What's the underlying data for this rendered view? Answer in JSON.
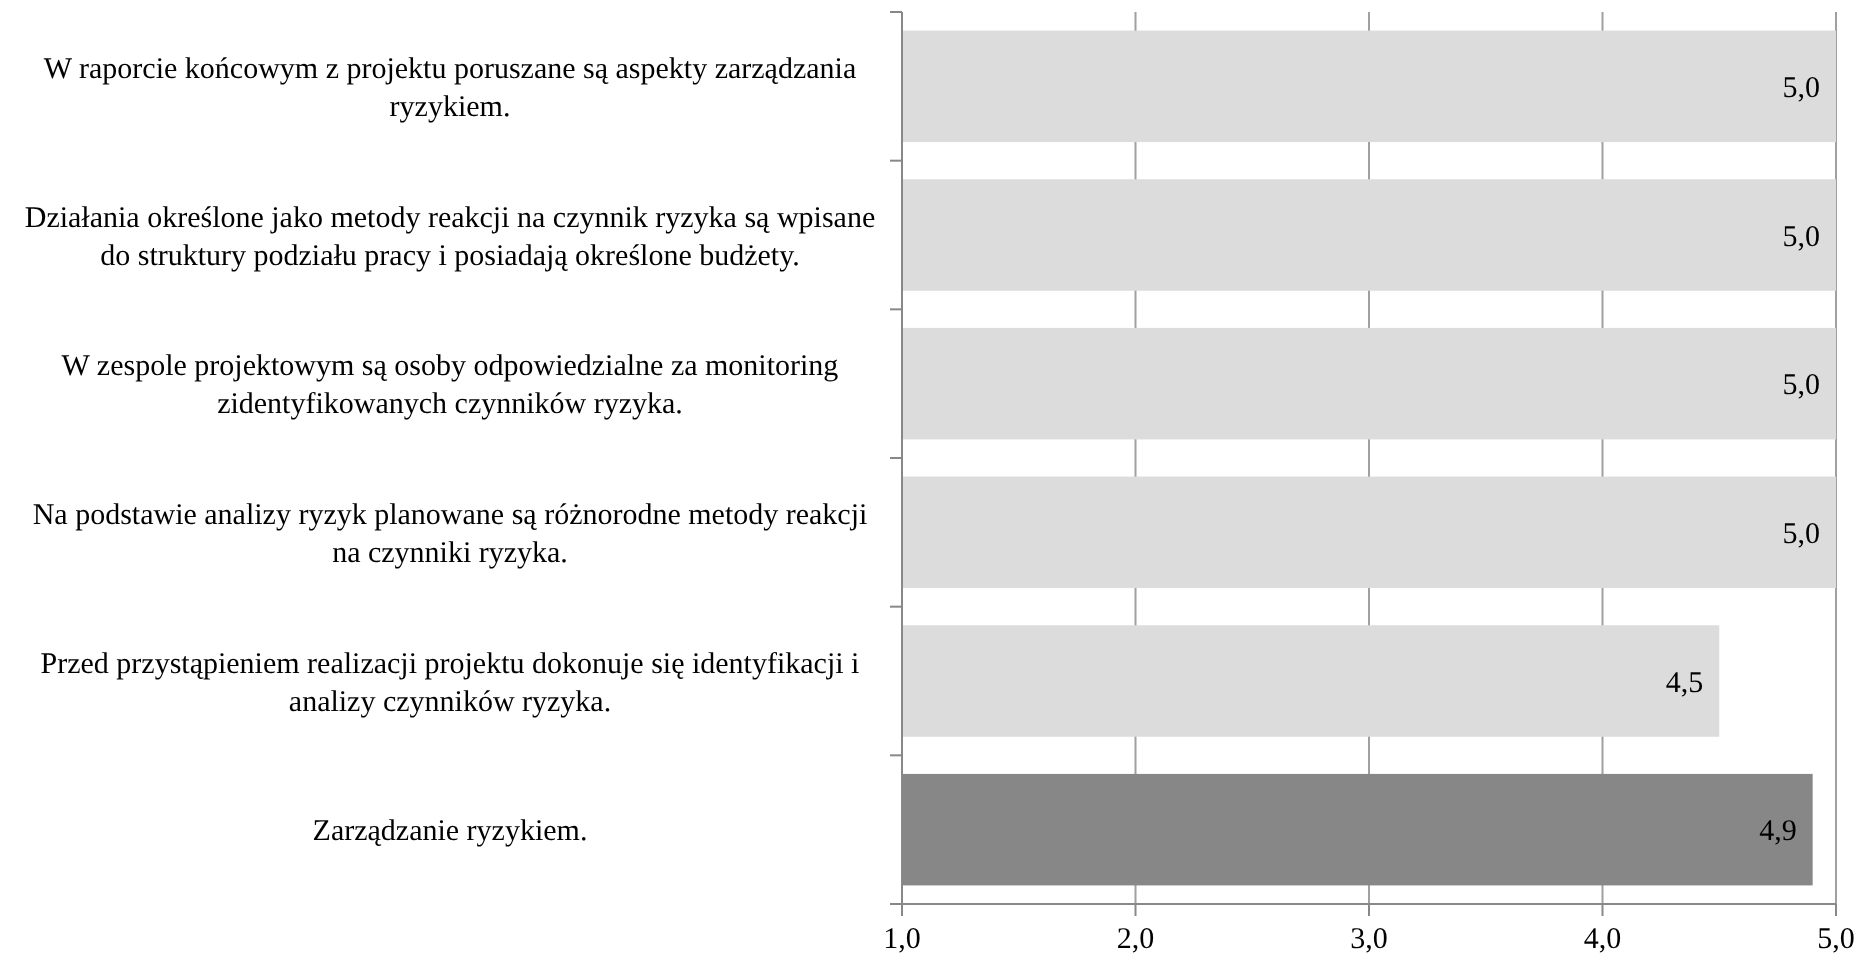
{
  "chart_data": {
    "type": "bar",
    "orientation": "horizontal",
    "categories": [
      "W raporcie końcowym z projektu poruszane są aspekty zarządzania ryzykiem.",
      "Działania określone jako metody reakcji na czynnik ryzyka są wpisane do struktury podziału pracy i posiadają określone budżety.",
      "W zespole projektowym są osoby odpowiedzialne za monitoring zidentyfikowanych czynników ryzyka.",
      "Na podstawie analizy ryzyk planowane są różnorodne metody reakcji na czynniki ryzyka.",
      "Przed przystąpieniem realizacji projektu dokonuje się identyfikacji i analizy czynników ryzyka.",
      "Zarządzanie ryzykiem."
    ],
    "values": [
      5.0,
      5.0,
      5.0,
      5.0,
      4.5,
      4.9
    ],
    "value_labels": [
      "5,0",
      "5,0",
      "5,0",
      "5,0",
      "4,5",
      "4,9"
    ],
    "colors": [
      "#dcdcdc",
      "#dcdcdc",
      "#dcdcdc",
      "#dcdcdc",
      "#dcdcdc",
      "#878787"
    ],
    "xlim": [
      1,
      5
    ],
    "xticks": [
      {
        "value": 1,
        "label": "1,0"
      },
      {
        "value": 2,
        "label": "2,0"
      },
      {
        "value": 3,
        "label": "3,0"
      },
      {
        "value": 4,
        "label": "4,0"
      },
      {
        "value": 5,
        "label": "5,0"
      }
    ],
    "grid": "x"
  }
}
